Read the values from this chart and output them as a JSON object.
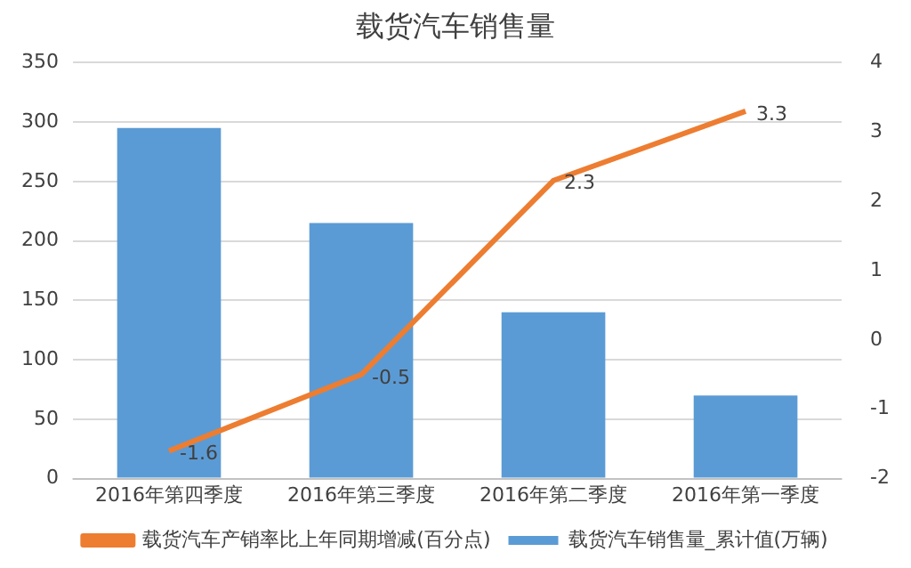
{
  "chart_data": {
    "type": "bar",
    "title": "载货汽车销售量",
    "categories": [
      "2016年第四季度",
      "2016年第三季度",
      "2016年第二季度",
      "2016年第一季度"
    ],
    "series": [
      {
        "name": "载货汽车销售量_累计值(万辆)",
        "color": "#5b9bd5",
        "values": [
          295,
          215,
          140,
          70
        ]
      },
      {
        "name": "载货汽车产销率比上年同期增减(百分点)",
        "type": "line",
        "axis": "y2",
        "color": "#ed7d31",
        "values": [
          -1.6,
          -0.5,
          2.3,
          3.3
        ],
        "value_labels": [
          "-1.6",
          "-0.5",
          "2.3",
          "3.3"
        ]
      }
    ],
    "ylim": [
      0,
      350
    ],
    "yticks": [
      0,
      50,
      100,
      150,
      200,
      250,
      300,
      350
    ],
    "y2lim": [
      -2,
      4
    ],
    "y2ticks": [
      -2,
      -1,
      0,
      1,
      2,
      3,
      4
    ],
    "grid": "y",
    "legend": "bottom",
    "marker": "none"
  }
}
